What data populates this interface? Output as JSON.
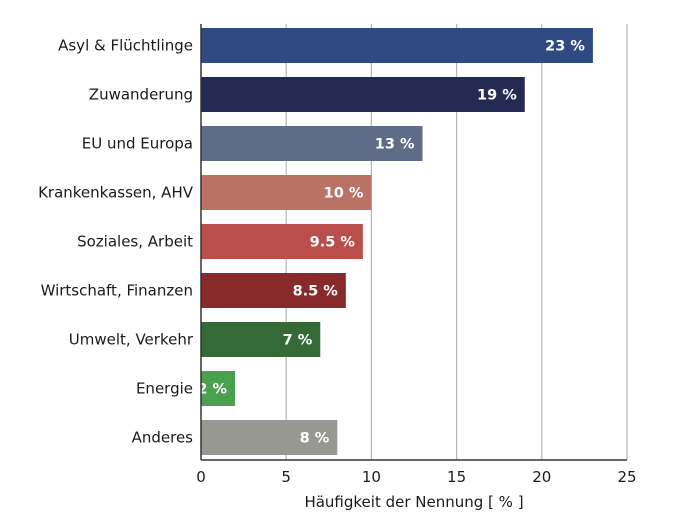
{
  "chart_data": {
    "type": "bar",
    "orientation": "horizontal",
    "categories": [
      "Asyl & Flüchtlinge",
      "Zuwanderung",
      "EU und Europa",
      "Krankenkassen, AHV",
      "Soziales, Arbeit",
      "Wirtschaft, Finanzen",
      "Umwelt, Verkehr",
      "Energie",
      "Anderes"
    ],
    "values": [
      23,
      19,
      13,
      10,
      9.5,
      8.5,
      7,
      2,
      8
    ],
    "value_labels": [
      "23 %",
      "19 %",
      "13 %",
      "10 %",
      "9.5 %",
      "8.5 %",
      "7 %",
      "2 %",
      "8 %"
    ],
    "colors": [
      "#2e4a80",
      "#242b52",
      "#5f6c88",
      "#b97263",
      "#b94e4b",
      "#882a2a",
      "#356935",
      "#4ba04f",
      "#989893"
    ],
    "title": "",
    "xlabel": "Häufigkeit der Nennung [ % ]",
    "ylabel": "",
    "xlim": [
      0,
      25
    ],
    "xticks": [
      0,
      5,
      10,
      15,
      20,
      25
    ],
    "xtick_labels": [
      "0",
      "5",
      "10",
      "15",
      "20",
      "25"
    ],
    "grid": "vertical",
    "legend": "none"
  }
}
